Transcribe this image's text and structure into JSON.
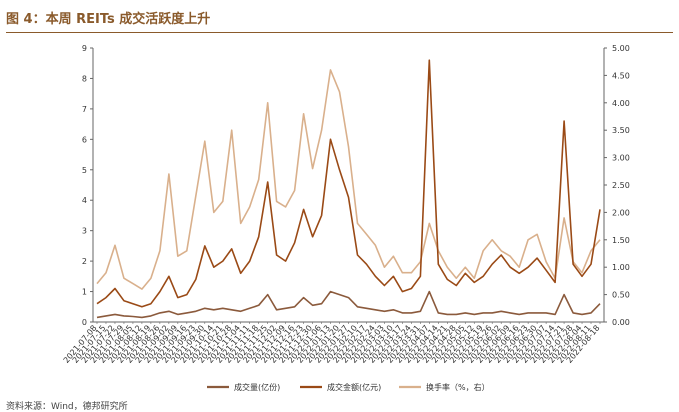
{
  "title": "图 4：本周 REITs 成交活跃度上升",
  "source": "资料来源：Wind，德邦研究所",
  "chart_data": {
    "type": "line",
    "y_left": {
      "min": 0,
      "max": 9,
      "ticks": [
        "0",
        "1",
        "2",
        "3",
        "4",
        "5",
        "6",
        "7",
        "8",
        "9"
      ]
    },
    "y_right": {
      "min": 0,
      "max": 5,
      "ticks": [
        "0.00",
        "0.50",
        "1.00",
        "1.50",
        "2.00",
        "2.50",
        "3.00",
        "3.50",
        "4.00",
        "4.50",
        "5.00"
      ]
    },
    "x_labels": [
      "2021-07-08",
      "2021-07-15",
      "2021-07-22",
      "2021-07-29",
      "2021-08-05",
      "2021-08-12",
      "2021-08-19",
      "2021-08-26",
      "2021-09-02",
      "2021-09-09",
      "2021-09-16",
      "2021-09-23",
      "2021-09-30",
      "2021-10-14",
      "2021-10-21",
      "2021-10-28",
      "2021-11-04",
      "2021-11-11",
      "2021-11-18",
      "2021-11-25",
      "2021-12-02",
      "2021-12-09",
      "2021-12-16",
      "2021-12-23",
      "2021-12-30",
      "2022-01-06",
      "2022-01-13",
      "2022-01-20",
      "2022-01-27",
      "2022-02-10",
      "2022-02-17",
      "2022-02-24",
      "2022-03-03",
      "2022-03-10",
      "2022-03-17",
      "2022-03-24",
      "2022-03-31",
      "2022-04-07",
      "2022-04-14",
      "2022-04-21",
      "2022-04-28",
      "2022-05-05",
      "2022-05-12",
      "2022-05-19",
      "2022-05-26",
      "2022-06-02",
      "2022-06-09",
      "2022-06-16",
      "2022-06-23",
      "2022-06-30",
      "2022-07-07",
      "2022-07-14",
      "2022-07-21",
      "2022-07-28",
      "2022-08-04",
      "2022-08-11",
      "2022-08-18"
    ],
    "series": [
      {
        "name": "成交量(亿份)",
        "axis": "left",
        "color": "#8b5a3c",
        "values": [
          0.15,
          0.2,
          0.25,
          0.2,
          0.18,
          0.15,
          0.2,
          0.3,
          0.35,
          0.25,
          0.3,
          0.35,
          0.45,
          0.4,
          0.45,
          0.4,
          0.35,
          0.45,
          0.55,
          0.9,
          0.4,
          0.45,
          0.5,
          0.8,
          0.55,
          0.6,
          1.0,
          0.9,
          0.8,
          0.5,
          0.45,
          0.4,
          0.35,
          0.4,
          0.3,
          0.3,
          0.35,
          1.0,
          0.3,
          0.25,
          0.25,
          0.3,
          0.25,
          0.3,
          0.3,
          0.35,
          0.3,
          0.25,
          0.3,
          0.3,
          0.3,
          0.25,
          0.9,
          0.3,
          0.25,
          0.3,
          0.6
        ]
      },
      {
        "name": "成交金额(亿元)",
        "axis": "left",
        "color": "#9a4a16",
        "values": [
          0.6,
          0.8,
          1.1,
          0.7,
          0.6,
          0.5,
          0.6,
          1.0,
          1.5,
          0.8,
          0.9,
          1.4,
          2.5,
          1.8,
          2.0,
          2.4,
          1.6,
          2.0,
          2.8,
          4.6,
          2.2,
          2.0,
          2.6,
          3.7,
          2.8,
          3.5,
          6.0,
          5.0,
          4.1,
          2.2,
          1.9,
          1.5,
          1.2,
          1.5,
          1.0,
          1.1,
          1.5,
          8.6,
          1.9,
          1.4,
          1.2,
          1.6,
          1.3,
          1.5,
          1.9,
          2.2,
          1.8,
          1.6,
          1.8,
          2.1,
          1.7,
          1.3,
          6.6,
          1.9,
          1.5,
          1.9,
          3.7
        ]
      },
      {
        "name": "换手率（%，右）",
        "axis": "right",
        "color": "#d9b08c",
        "values": [
          0.7,
          0.9,
          1.4,
          0.8,
          0.7,
          0.6,
          0.8,
          1.3,
          2.7,
          1.2,
          1.3,
          2.3,
          3.3,
          2.0,
          2.2,
          3.5,
          1.8,
          2.1,
          2.6,
          4.0,
          2.2,
          2.1,
          2.4,
          3.8,
          2.8,
          3.5,
          4.6,
          4.2,
          3.2,
          1.8,
          1.6,
          1.4,
          1.0,
          1.2,
          0.9,
          0.9,
          1.1,
          1.8,
          1.3,
          1.0,
          0.8,
          1.0,
          0.8,
          1.3,
          1.5,
          1.3,
          1.2,
          1.0,
          1.5,
          1.6,
          1.1,
          0.8,
          1.9,
          1.1,
          0.9,
          1.3,
          1.5
        ]
      }
    ]
  }
}
